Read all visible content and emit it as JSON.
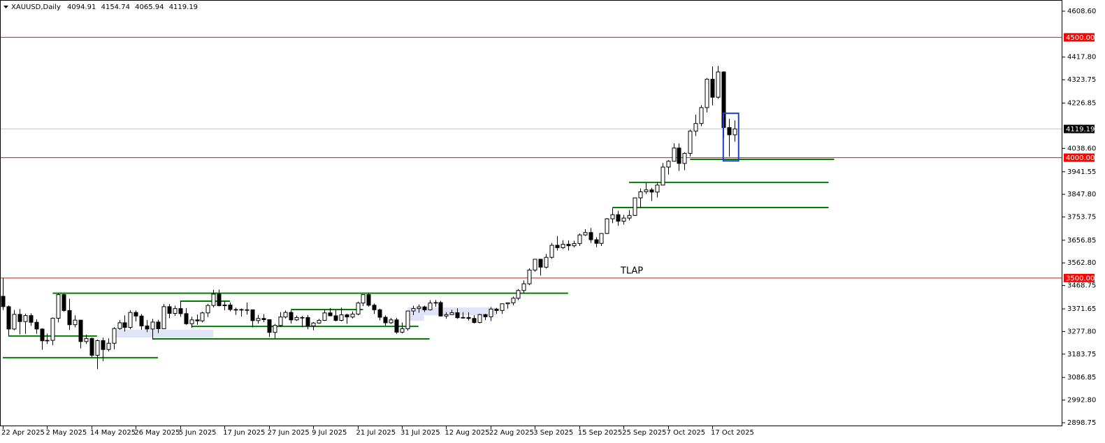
{
  "chart_data": {
    "type": "candlestick",
    "title": "XAUUSD,Daily",
    "quote": [
      4094.91,
      4154.74,
      4065.94,
      4119.19
    ],
    "annotation": "TLAP",
    "categories": [
      "22 Apr 2025",
      null,
      null,
      null,
      null,
      null,
      null,
      null,
      "2 May 2025",
      null,
      null,
      null,
      null,
      null,
      null,
      null,
      "14 May 2025",
      null,
      null,
      null,
      null,
      null,
      null,
      null,
      "26 May 2025",
      null,
      null,
      null,
      null,
      null,
      null,
      null,
      "5 Jun 2025",
      null,
      null,
      null,
      null,
      null,
      null,
      null,
      "17 Jun 2025",
      null,
      null,
      null,
      null,
      null,
      null,
      null,
      "27 Jun 2025",
      null,
      null,
      null,
      null,
      null,
      null,
      null,
      "9 Jul 2025",
      null,
      null,
      null,
      null,
      null,
      null,
      null,
      "21 Jul 2025",
      null,
      null,
      null,
      null,
      null,
      null,
      null,
      "31 Jul 2025",
      null,
      null,
      null,
      null,
      null,
      null,
      null,
      "12 Aug 2025",
      null,
      null,
      null,
      null,
      null,
      null,
      null,
      "22 Aug 2025",
      null,
      null,
      null,
      null,
      null,
      null,
      null,
      "3 Sep 2025",
      null,
      null,
      null,
      null,
      null,
      null,
      null,
      "15 Sep 2025",
      null,
      null,
      null,
      null,
      null,
      null,
      null,
      "25 Sep 2025",
      null,
      null,
      null,
      null,
      null,
      null,
      null,
      "7 Oct 2025",
      null,
      null,
      null,
      null,
      null,
      null,
      null,
      "17 Oct 2025",
      null,
      null,
      null,
      null
    ],
    "open": [
      3424,
      3381,
      3288,
      3349,
      3319,
      3344,
      3316,
      3288,
      3239,
      3241,
      3333,
      3431,
      3365,
      3306,
      3325,
      3236,
      3249,
      3179,
      3240,
      3203,
      3229,
      3290,
      3314,
      3295,
      3357,
      3342,
      3301,
      3288,
      3317,
      3289,
      3381,
      3353,
      3373,
      3352,
      3310,
      3326,
      3322,
      3355,
      3386,
      3433,
      3385,
      3388,
      3369,
      3369,
      3368,
      3368,
      3323,
      3332,
      3327,
      3274,
      3303,
      3338,
      3357,
      3326,
      3336,
      3336,
      3301,
      3313,
      3324,
      3355,
      3343,
      3324,
      3347,
      3338,
      3350,
      3396,
      3431,
      3387,
      3368,
      3337,
      3314,
      3326,
      3275,
      3289,
      3363,
      3373,
      3380,
      3368,
      3396,
      3398,
      3342,
      3348,
      3356,
      3335,
      3336,
      3332,
      3315,
      3348,
      3339,
      3371,
      3365,
      3393,
      3397,
      3416,
      3448,
      3476,
      3533,
      3578,
      3545,
      3586,
      3636,
      3626,
      3640,
      3634,
      3643,
      3679,
      3689,
      3659,
      3644,
      3685,
      3746,
      3763,
      3736,
      3749,
      3760,
      3833,
      3858,
      3866,
      3857,
      3886,
      3961,
      3985,
      4040,
      3976,
      4018,
      4110,
      4142,
      4208,
      4326,
      4251,
      4356,
      4125,
      4094.91
    ],
    "high": [
      3500,
      3386,
      3367,
      3371,
      3352,
      3353,
      3328,
      3291,
      3269,
      3336,
      3437,
      3435,
      3414,
      3345,
      3325,
      3265,
      3252,
      3244,
      3252,
      3249,
      3296,
      3325,
      3345,
      3366,
      3365,
      3350,
      3325,
      3330,
      3326,
      3392,
      3392,
      3385,
      3403,
      3375,
      3339,
      3348,
      3360,
      3393,
      3451,
      3452,
      3404,
      3398,
      3377,
      3373,
      3398,
      3369,
      3347,
      3350,
      3328,
      3309,
      3358,
      3365,
      3366,
      3344,
      3343,
      3346,
      3317,
      3330,
      3369,
      3375,
      3366,
      3377,
      3352,
      3361,
      3402,
      3433,
      3439,
      3394,
      3373,
      3345,
      3334,
      3334,
      3315,
      3363,
      3385,
      3390,
      3385,
      3408,
      3409,
      3405,
      3358,
      3368,
      3374,
      3358,
      3358,
      3345,
      3351,
      3351,
      3379,
      3376,
      3393,
      3398,
      3423,
      3454,
      3490,
      3540,
      3578,
      3580,
      3600,
      3646,
      3674,
      3657,
      3656,
      3655,
      3685,
      3703,
      3708,
      3669,
      3687,
      3749,
      3791,
      3779,
      3762,
      3782,
      3834,
      3872,
      3895,
      3875,
      3898,
      3977,
      3990,
      4060,
      4059,
      4022,
      4116,
      4179,
      4218,
      4331,
      4379,
      4381,
      4359,
      4161,
      4154.74
    ],
    "low": [
      3367,
      3260,
      3283,
      3266,
      3268,
      3301,
      3268,
      3202,
      3226,
      3221,
      3316,
      3360,
      3284,
      3295,
      3208,
      3226,
      3171,
      3121,
      3154,
      3195,
      3204,
      3285,
      3278,
      3287,
      3320,
      3285,
      3275,
      3245,
      3271,
      3289,
      3333,
      3343,
      3339,
      3306,
      3293,
      3306,
      3316,
      3338,
      3378,
      3382,
      3366,
      3362,
      3347,
      3340,
      3348,
      3295,
      3311,
      3317,
      3255,
      3247,
      3296,
      3332,
      3311,
      3322,
      3296,
      3287,
      3283,
      3310,
      3322,
      3341,
      3320,
      3320,
      3310,
      3332,
      3345,
      3383,
      3381,
      3351,
      3324,
      3302,
      3309,
      3268,
      3270,
      3281,
      3346,
      3356,
      3359,
      3365,
      3381,
      3340,
      3331,
      3347,
      3330,
      3331,
      3323,
      3311,
      3312,
      3325,
      3321,
      3351,
      3351,
      3373,
      3386,
      3408,
      3437,
      3470,
      3526,
      3510,
      3539,
      3580,
      3614,
      3620,
      3614,
      3627,
      3633,
      3675,
      3646,
      3628,
      3633,
      3683,
      3728,
      3717,
      3722,
      3739,
      3758,
      3793,
      3849,
      3820,
      3835,
      3886,
      3930,
      3984,
      3945,
      3948,
      4005,
      4090,
      4131,
      4188,
      4217,
      4245,
      4082,
      4004,
      4065.94
    ],
    "close": [
      3381,
      3288,
      3349,
      3319,
      3344,
      3316,
      3288,
      3239,
      3241,
      3333,
      3431,
      3365,
      3306,
      3325,
      3236,
      3249,
      3179,
      3240,
      3203,
      3229,
      3290,
      3314,
      3295,
      3357,
      3342,
      3301,
      3288,
      3317,
      3289,
      3381,
      3353,
      3373,
      3352,
      3310,
      3326,
      3322,
      3355,
      3386,
      3433,
      3385,
      3388,
      3369,
      3369,
      3368,
      3368,
      3323,
      3332,
      3327,
      3274,
      3303,
      3338,
      3357,
      3326,
      3336,
      3336,
      3301,
      3313,
      3324,
      3355,
      3343,
      3324,
      3347,
      3338,
      3350,
      3396,
      3431,
      3387,
      3368,
      3337,
      3314,
      3326,
      3275,
      3289,
      3363,
      3373,
      3380,
      3368,
      3396,
      3398,
      3342,
      3348,
      3356,
      3335,
      3336,
      3332,
      3315,
      3348,
      3339,
      3371,
      3365,
      3393,
      3397,
      3416,
      3448,
      3476,
      3533,
      3578,
      3545,
      3586,
      3636,
      3626,
      3640,
      3634,
      3643,
      3679,
      3689,
      3659,
      3644,
      3685,
      3746,
      3763,
      3736,
      3749,
      3760,
      3833,
      3858,
      3866,
      3857,
      3886,
      3961,
      3985,
      4040,
      3976,
      4018,
      4110,
      4142,
      4208,
      4326,
      4251,
      4356,
      4125,
      4095,
      4119.19
    ],
    "up_color": "#ffffff",
    "down_color": "#000000",
    "ylim": [
      2884.2,
      4655
    ],
    "yticks": [
      {
        "value": 4608.6,
        "label": "4608.60"
      },
      {
        "value": 4417.8,
        "label": "4417.80"
      },
      4323.75,
      4226.85,
      {
        "value": 4038.6,
        "label": "4038.60"
      },
      3941.55,
      {
        "value": 3847.8,
        "label": "3847.80"
      },
      3753.75,
      3656.85,
      {
        "value": 3562.8,
        "label": "3562.80"
      },
      3468.75,
      3371.65,
      {
        "value": 3277.8,
        "label": "3277.80"
      },
      3183.75,
      3086.85,
      {
        "value": 2992.8,
        "label": "2992.80"
      },
      2898.75
    ],
    "last_price": 4119.19,
    "levels": [
      {
        "value": 4500,
        "label": "4500.00",
        "color": "#ff0000"
      },
      {
        "value": 4000,
        "label": "4000.00",
        "color": "#ff0000"
      },
      {
        "value": 3500,
        "label": "3500.00",
        "color": "#ff0000"
      }
    ],
    "support_color": "#008000",
    "support_lines": [
      {
        "value": 3437,
        "start": 9,
        "end": 102
      },
      {
        "value": 3404,
        "start": 32,
        "end": 41
      },
      {
        "value": 3369,
        "start": 52,
        "end": 65
      },
      {
        "value": 3299,
        "start": 34,
        "end": 75
      },
      {
        "value": 3259,
        "start": 1,
        "end": 17
      },
      {
        "value": 3247,
        "start": 27,
        "end": 77
      },
      {
        "value": 3169,
        "start": 0,
        "end": 28
      },
      {
        "value": 3993,
        "start": 124,
        "end": 150
      },
      {
        "value": 3897,
        "start": 113,
        "end": 149
      },
      {
        "value": 3793,
        "start": 110,
        "end": 149
      }
    ],
    "zone_color": "#e3e3f7",
    "zones": [
      {
        "top": 3285,
        "bottom": 3253,
        "start": 20,
        "end": 38
      },
      {
        "top": 3378,
        "bottom": 3345,
        "start": 73,
        "end": 89
      },
      {
        "top": 3345,
        "bottom": 3322,
        "start": 73,
        "end": 76
      }
    ]
  }
}
